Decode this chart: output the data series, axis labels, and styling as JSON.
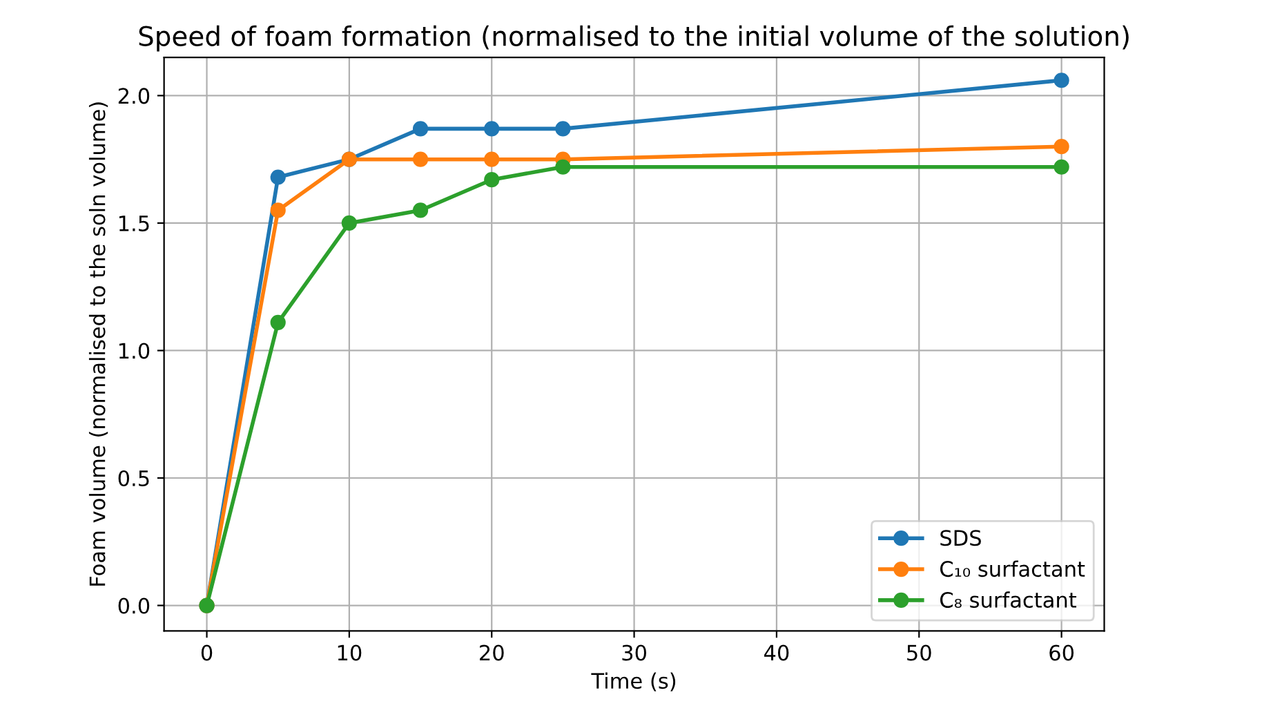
{
  "chart_data": {
    "type": "line",
    "title": "Speed of foam formation (normalised to the initial volume of the solution)",
    "xlabel": "Time (s)",
    "ylabel": "Foam volume (normalised to the soln volume)",
    "x": [
      0,
      5,
      10,
      15,
      20,
      25,
      60
    ],
    "series": [
      {
        "name": "SDS",
        "color": "#1f77b4",
        "values": [
          0,
          1.68,
          1.75,
          1.87,
          1.87,
          1.87,
          2.06
        ]
      },
      {
        "name": "C₁₀ surfactant",
        "color": "#ff7f0e",
        "values": [
          0,
          1.55,
          1.75,
          1.75,
          1.75,
          1.75,
          1.8
        ]
      },
      {
        "name": "C₈ surfactant",
        "color": "#2ca02c",
        "values": [
          0,
          1.11,
          1.5,
          1.55,
          1.67,
          1.72,
          1.72
        ]
      }
    ],
    "xlim": [
      -3,
      63
    ],
    "xticks": [
      0,
      10,
      20,
      30,
      40,
      50,
      60
    ],
    "ylim": [
      -0.1,
      2.15
    ],
    "yticks": [
      {
        "value": 0,
        "label": "0.0"
      },
      {
        "value": 0.5,
        "label": "0.5"
      },
      {
        "value": 1,
        "label": "1.0"
      },
      {
        "value": 1.5,
        "label": "1.5"
      },
      {
        "value": 2,
        "label": "2.0"
      }
    ],
    "grid": true,
    "legend": "bottom right",
    "marker": "circle",
    "line_style": "solid"
  }
}
